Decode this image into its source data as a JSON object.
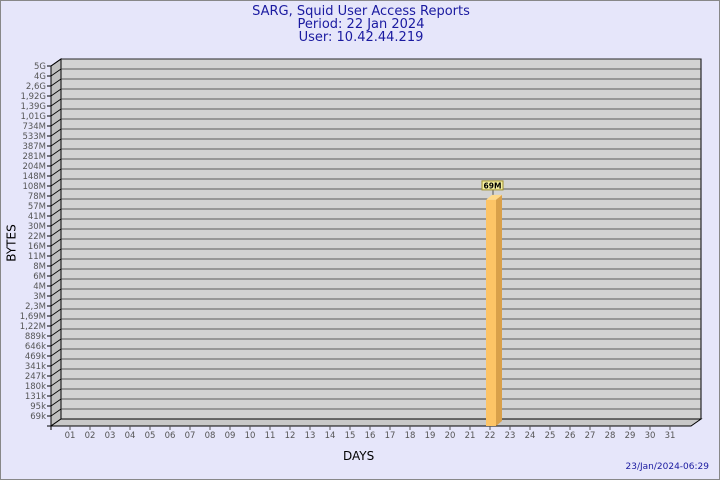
{
  "header": {
    "title": "SARG, Squid User Access Reports",
    "period": "Period: 22 Jan 2024",
    "user": "User: 10.42.44.219"
  },
  "footer": {
    "timestamp": "23/Jan/2024-06:29"
  },
  "chart_data": {
    "type": "bar",
    "xlabel": "DAYS",
    "ylabel": "BYTES",
    "y_scale": "log",
    "grid": true,
    "y_ticks": [
      "5G",
      "4G",
      "2,6G",
      "1,92G",
      "1,39G",
      "1,01G",
      "734M",
      "533M",
      "387M",
      "281M",
      "204M",
      "148M",
      "108M",
      "78M",
      "57M",
      "41M",
      "30M",
      "22M",
      "16M",
      "11M",
      "8M",
      "6M",
      "4M",
      "3M",
      "2,3M",
      "1,69M",
      "1,22M",
      "889k",
      "646k",
      "469k",
      "341k",
      "247k",
      "180k",
      "131k",
      "95k",
      "69k"
    ],
    "categories": [
      "01",
      "02",
      "03",
      "04",
      "05",
      "06",
      "07",
      "08",
      "09",
      "10",
      "11",
      "12",
      "13",
      "14",
      "15",
      "16",
      "17",
      "18",
      "19",
      "20",
      "21",
      "22",
      "23",
      "24",
      "25",
      "26",
      "27",
      "28",
      "29",
      "30",
      "31"
    ],
    "bars": [
      {
        "category": "22",
        "value": 69000000,
        "label": "69M"
      }
    ],
    "colors": {
      "bar_front": "#fdc466",
      "bar_side": "#d9a04a",
      "plot_bg": "#d3d3d3",
      "label_bg": "#f5f0a0"
    }
  }
}
